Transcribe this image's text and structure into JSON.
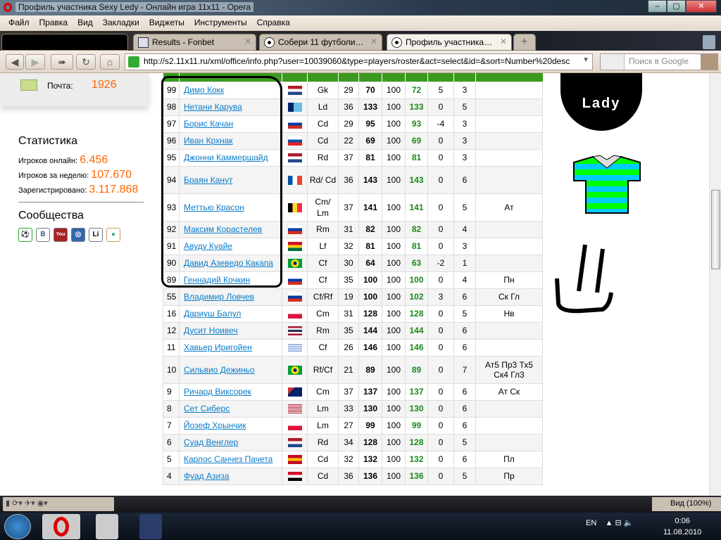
{
  "window": {
    "title": "Профиль участника Sexy Ledy - Онлайн игра 11x11 - Opera"
  },
  "menu": [
    "Файл",
    "Правка",
    "Вид",
    "Закладки",
    "Виджеты",
    "Инструменты",
    "Справка"
  ],
  "tabs": [
    {
      "label": "Results - Fonbet"
    },
    {
      "label": "Собери 11 футболист..."
    },
    {
      "label": "Профиль участника S..."
    }
  ],
  "address": {
    "url": "http://s2.11x11.ru/xml/office/info.php?user=10039060&type=players/roster&act=select&id=&sort=Number%20desc"
  },
  "search": {
    "placeholder": "Поиск в Google"
  },
  "mail": {
    "label": "Почта:",
    "value": "1926"
  },
  "stats": {
    "title": "Статистика",
    "online_label": "Игроков онлайн:",
    "online": "6.456",
    "week_label": "Игроков за неделю:",
    "week": "107.670",
    "reg_label": "Зарегистрировано:",
    "reg": "3.117.868"
  },
  "communities": {
    "title": "Сообщества",
    "icons": [
      "soccer-ball-icon",
      "vkontakte-icon",
      "youtube-icon",
      "mail-agent-icon",
      "liveinternet-icon",
      "people-icon"
    ],
    "labels": [
      "⚽",
      "В",
      "You",
      "◎",
      "Li",
      "●"
    ]
  },
  "flag_colors": {
    "nl": [
      "#ae1c28",
      "#fff",
      "#21468b"
    ],
    "ru": [
      "#fff",
      "#0039a6",
      "#d52b1e"
    ],
    "sk": [
      "#fff",
      "#0b4ea2",
      "#ee1c25"
    ],
    "pl": [
      "#fff",
      "#dc143c"
    ],
    "th": [
      "#a51931",
      "#f4f5f8",
      "#2d2a4a",
      "#f4f5f8",
      "#a51931"
    ],
    "gh": [
      "#ce1126",
      "#fcd116",
      "#006b3f"
    ],
    "iq": [
      "#ce1126",
      "#fff",
      "#000"
    ],
    "es": [
      "#c60b1e",
      "#ffc400",
      "#c60b1e"
    ]
  },
  "roster": [
    {
      "num": "99",
      "name": "Димо Кокк",
      "flag": "nl",
      "pos": "Gk",
      "age": "29",
      "q": "70",
      "fit": "100",
      "cur": "72",
      "d": "5",
      "s": "3",
      "notes": ""
    },
    {
      "num": "98",
      "name": "Нетани Карува",
      "flag": "fj",
      "pos": "Ld",
      "age": "36",
      "q": "133",
      "fit": "100",
      "cur": "133",
      "d": "0",
      "s": "5",
      "notes": ""
    },
    {
      "num": "97",
      "name": "Борис Качан",
      "flag": "ru",
      "pos": "Cd",
      "age": "29",
      "q": "95",
      "fit": "100",
      "cur": "93",
      "d": "-4",
      "s": "3",
      "notes": ""
    },
    {
      "num": "96",
      "name": "Иван Крхнак",
      "flag": "sk",
      "pos": "Cd",
      "age": "22",
      "q": "69",
      "fit": "100",
      "cur": "69",
      "d": "0",
      "s": "3",
      "notes": ""
    },
    {
      "num": "95",
      "name": "Джонни Каммершайд",
      "flag": "nl",
      "pos": "Rd",
      "age": "37",
      "q": "81",
      "fit": "100",
      "cur": "81",
      "d": "0",
      "s": "3",
      "notes": ""
    },
    {
      "num": "94",
      "name": "Браян Канут",
      "flag": "fr",
      "pos": "Rd/ Cd",
      "age": "36",
      "q": "143",
      "fit": "100",
      "cur": "143",
      "d": "0",
      "s": "6",
      "notes": ""
    },
    {
      "num": "93",
      "name": "Меттью Красон",
      "flag": "be",
      "pos": "Cm/ Lm",
      "age": "37",
      "q": "141",
      "fit": "100",
      "cur": "141",
      "d": "0",
      "s": "5",
      "notes": "Ат"
    },
    {
      "num": "92",
      "name": "Максим Корастелев",
      "flag": "ru",
      "pos": "Rm",
      "age": "31",
      "q": "82",
      "fit": "100",
      "cur": "82",
      "d": "0",
      "s": "4",
      "notes": ""
    },
    {
      "num": "91",
      "name": "Авуду Куайе",
      "flag": "gh",
      "pos": "Lf",
      "age": "32",
      "q": "81",
      "fit": "100",
      "cur": "81",
      "d": "0",
      "s": "3",
      "notes": ""
    },
    {
      "num": "90",
      "name": "Давид Азеведо Какапа",
      "flag": "br",
      "pos": "Cf",
      "age": "30",
      "q": "64",
      "fit": "100",
      "cur": "63",
      "d": "-2",
      "s": "1",
      "notes": ""
    },
    {
      "num": "89",
      "name": "Геннадий Кочкин",
      "flag": "ru",
      "pos": "Cf",
      "age": "35",
      "q": "100",
      "fit": "100",
      "cur": "100",
      "d": "0",
      "s": "4",
      "notes": "Пн"
    },
    {
      "num": "55",
      "name": "Владимир Ловчев",
      "flag": "ru",
      "pos": "Cf/Rf",
      "age": "19",
      "q": "100",
      "fit": "100",
      "cur": "102",
      "d": "3",
      "s": "6",
      "notes": "Ск Гл"
    },
    {
      "num": "16",
      "name": "Дариуш Балул",
      "flag": "pl",
      "pos": "Cm",
      "age": "31",
      "q": "128",
      "fit": "100",
      "cur": "128",
      "d": "0",
      "s": "5",
      "notes": "Нв"
    },
    {
      "num": "12",
      "name": "Дусит Ноивеч",
      "flag": "th",
      "pos": "Rm",
      "age": "35",
      "q": "144",
      "fit": "100",
      "cur": "144",
      "d": "0",
      "s": "6",
      "notes": ""
    },
    {
      "num": "11",
      "name": "Хавьер Иригойен",
      "flag": "uy",
      "pos": "Cf",
      "age": "26",
      "q": "146",
      "fit": "100",
      "cur": "146",
      "d": "0",
      "s": "6",
      "notes": ""
    },
    {
      "num": "10",
      "name": "Сильвио Дежиньо",
      "flag": "br",
      "pos": "Rf/Cf",
      "age": "21",
      "q": "89",
      "fit": "100",
      "cur": "89",
      "d": "0",
      "s": "7",
      "notes": "Ат5 Пр3 Тх5 Ск4 Гл3"
    },
    {
      "num": "9",
      "name": "Ричард Виксорек",
      "flag": "au",
      "pos": "Cm",
      "age": "37",
      "q": "137",
      "fit": "100",
      "cur": "137",
      "d": "0",
      "s": "6",
      "notes": "Ат Ск"
    },
    {
      "num": "8",
      "name": "Сет Сиберс",
      "flag": "us",
      "pos": "Lm",
      "age": "33",
      "q": "130",
      "fit": "100",
      "cur": "130",
      "d": "0",
      "s": "6",
      "notes": ""
    },
    {
      "num": "7",
      "name": "Йозеф Хрынчик",
      "flag": "pl",
      "pos": "Lm",
      "age": "27",
      "q": "99",
      "fit": "100",
      "cur": "99",
      "d": "0",
      "s": "6",
      "notes": ""
    },
    {
      "num": "6",
      "name": "Суад Венглер",
      "flag": "nl",
      "pos": "Rd",
      "age": "34",
      "q": "128",
      "fit": "100",
      "cur": "128",
      "d": "0",
      "s": "5",
      "notes": ""
    },
    {
      "num": "5",
      "name": "Карлос Санчез Пачета",
      "flag": "es",
      "pos": "Cd",
      "age": "32",
      "q": "132",
      "fit": "100",
      "cur": "132",
      "d": "0",
      "s": "6",
      "notes": "Пл"
    },
    {
      "num": "4",
      "name": "Фуад Азиза",
      "flag": "iq",
      "pos": "Cd",
      "age": "36",
      "q": "136",
      "fit": "100",
      "cur": "136",
      "d": "0",
      "s": "5",
      "notes": "Пр"
    }
  ],
  "logo_text": "Lady",
  "statusbar": {
    "zoom": "Вид (100%)"
  },
  "taskbar": {
    "lang": "EN",
    "time": "0:06",
    "date": "11.08.2010"
  }
}
